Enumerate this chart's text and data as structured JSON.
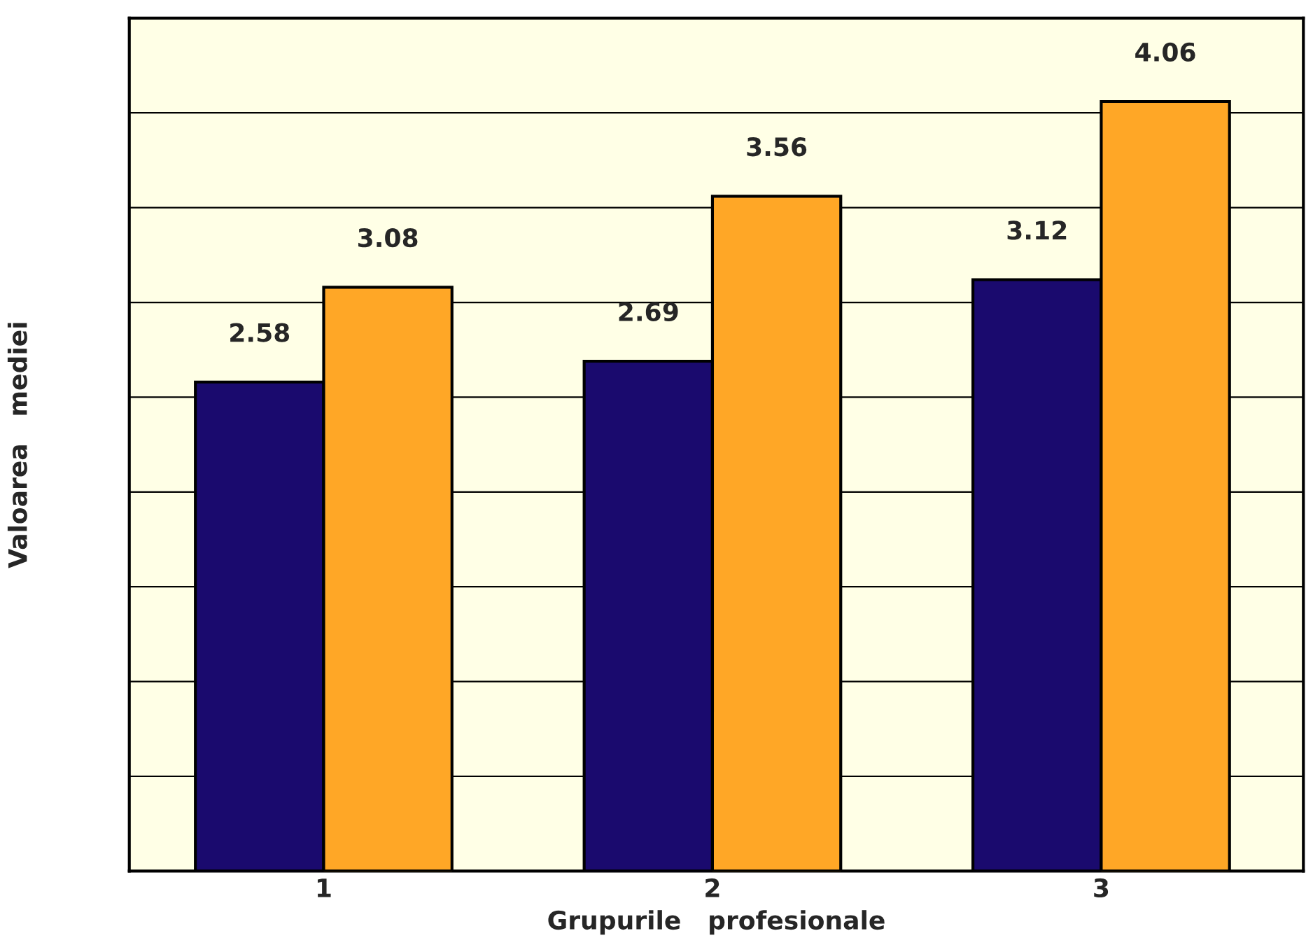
{
  "chart_data": {
    "type": "bar",
    "xlabel": "Grupurile   profesionale",
    "ylabel": "Valoarea   mediei",
    "categories": [
      "1",
      "2",
      "3"
    ],
    "series": [
      {
        "color": "#1a0a6e",
        "values": [
          2.58,
          2.69,
          3.12
        ]
      },
      {
        "color": "#ffa726",
        "values": [
          3.08,
          3.56,
          4.06
        ]
      }
    ],
    "ylim": [
      0,
      4.5
    ],
    "yticks": [
      {
        "value": 0.5,
        "label": null
      },
      {
        "value": 1,
        "label": null
      },
      {
        "value": 1.5,
        "label": null
      },
      {
        "value": 2,
        "label": null
      },
      {
        "value": 2.5,
        "label": null
      },
      {
        "value": 3,
        "label": null
      },
      {
        "value": 3.5,
        "label": null
      },
      {
        "value": 4,
        "label": null
      }
    ],
    "grid": "y",
    "tick_labels": "x",
    "data_labels": true
  }
}
